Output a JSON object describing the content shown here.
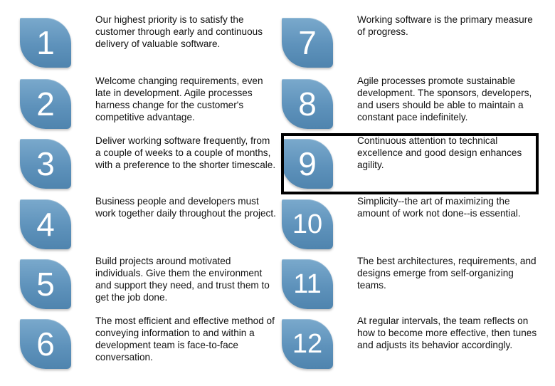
{
  "principles": [
    {
      "number": "1",
      "text": "Our highest priority is to satisfy the customer through early and continuous delivery of valuable software."
    },
    {
      "number": "2",
      "text": "Welcome changing requirements, even late in development. Agile processes harness change for the customer's competitive advantage."
    },
    {
      "number": "3",
      "text": "Deliver working software frequently, from a couple of weeks to a couple of months, with a preference to the shorter timescale."
    },
    {
      "number": "4",
      "text": "Business people and developers must work together daily throughout the project."
    },
    {
      "number": "5",
      "text": "Build projects around motivated individuals. Give them the environment and support they need, and trust them to get the job done."
    },
    {
      "number": "6",
      "text": "The most efficient and effective method of conveying information to and within a development team is face-to-face conversation."
    },
    {
      "number": "7",
      "text": "Working software is the primary measure of progress."
    },
    {
      "number": "8",
      "text": "Agile processes promote sustainable development. The sponsors, developers, and users should be able to maintain a constant pace indefinitely."
    },
    {
      "number": "9",
      "text": "Continuous attention to technical excellence and good design enhances agility."
    },
    {
      "number": "10",
      "text": "Simplicity--the art of maximizing the amount of work not done--is essential."
    },
    {
      "number": "11",
      "text": "The best architectures, requirements, and designs emerge from self-organizing teams."
    },
    {
      "number": "12",
      "text": "At regular intervals, the team reflects on how to become more effective, then tunes and adjusts its behavior accordingly."
    }
  ],
  "colors": {
    "badge": "#5e92bb",
    "highlight_border": "#000000"
  }
}
